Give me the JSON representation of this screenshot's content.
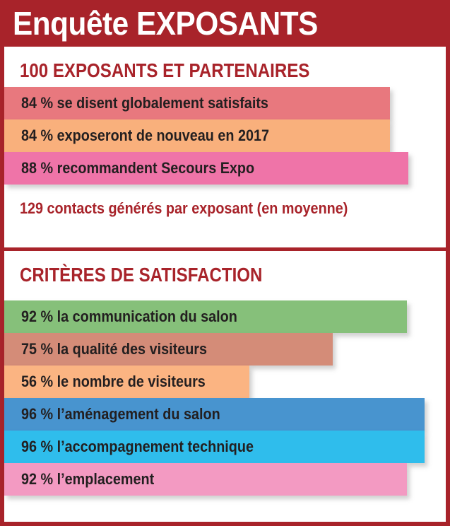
{
  "title": "Enquête EXPOSANTS",
  "colors": {
    "frame": "#a8232a",
    "accent_text": "#a8232a"
  },
  "section1": {
    "heading": "100 EXPOSANTS ET PARTENAIRES",
    "bars": [
      {
        "label": "84 % se disent globalement satisfaits",
        "value": 84,
        "color": "#e8787e"
      },
      {
        "label": "84 % exposeront de nouveau en 2017",
        "value": 84,
        "color": "#f9b07c"
      },
      {
        "label": "88 % recommandent Secours Expo",
        "value": 88,
        "color": "#ef74a8"
      }
    ],
    "note": "129 contacts générés par exposant (en moyenne)"
  },
  "section2": {
    "heading": "CRITÈRES DE SATISFACTION",
    "bars": [
      {
        "label": "92 % la communication du salon",
        "value": 92,
        "color": "#86c07a"
      },
      {
        "label": "75 % la qualité des visiteurs",
        "value": 75,
        "color": "#d48c78"
      },
      {
        "label": "56 % le nombre de visiteurs",
        "value": 56,
        "color": "#fbb482"
      },
      {
        "label": "96 % l’aménagement du salon",
        "value": 96,
        "color": "#4894cf"
      },
      {
        "label": "96 % l’accompagnement technique",
        "value": 96,
        "color": "#2fbdec"
      },
      {
        "label": "92 % l’emplacement",
        "value": 92,
        "color": "#f39ac2"
      }
    ]
  },
  "chart_data": [
    {
      "type": "bar",
      "title": "100 EXPOSANTS ET PARTENAIRES",
      "categories": [
        "se disent globalement satisfaits",
        "exposeront de nouveau en 2017",
        "recommandent Secours Expo"
      ],
      "values": [
        84,
        84,
        88
      ],
      "unit": "%"
    },
    {
      "type": "bar",
      "title": "CRITÈRES DE SATISFACTION",
      "categories": [
        "la communication du salon",
        "la qualité des visiteurs",
        "le nombre de visiteurs",
        "l’aménagement du salon",
        "l’accompagnement technique",
        "l’emplacement"
      ],
      "values": [
        92,
        75,
        56,
        96,
        96,
        92
      ],
      "unit": "%"
    }
  ]
}
